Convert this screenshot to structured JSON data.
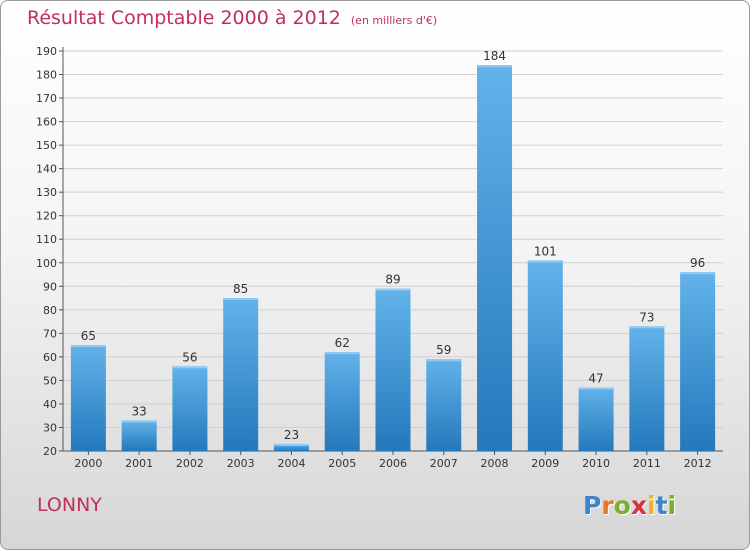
{
  "header": {
    "title": "Résultat Comptable 2000 à 2012",
    "subtitle": "(en milliers d'€)"
  },
  "footer": {
    "commune": "LONNY",
    "logo_letters": [
      "P",
      "r",
      "o",
      "x",
      "i",
      "t",
      "i"
    ],
    "logo_colors": [
      "#3a86c8",
      "#e8772a",
      "#79b12d",
      "#d8323c",
      "#f0b323",
      "#3a86c8",
      "#79b12d"
    ]
  },
  "colors": {
    "title": "#c0305a",
    "bar_light": "#62b3ea",
    "bar_dark": "#2478bb"
  },
  "chart_data": {
    "type": "bar",
    "title": "Résultat Comptable 2000 à 2012",
    "xlabel": "",
    "ylabel": "",
    "categories": [
      "2000",
      "2001",
      "2002",
      "2003",
      "2004",
      "2005",
      "2006",
      "2007",
      "2008",
      "2009",
      "2010",
      "2011",
      "2012"
    ],
    "values": [
      65,
      33,
      56,
      85,
      23,
      62,
      89,
      59,
      184,
      101,
      47,
      73,
      96
    ],
    "ylim": [
      20,
      190
    ],
    "yticks": [
      20,
      30,
      40,
      50,
      60,
      70,
      80,
      90,
      100,
      110,
      120,
      130,
      140,
      150,
      160,
      170,
      180,
      190
    ],
    "grid": true
  }
}
